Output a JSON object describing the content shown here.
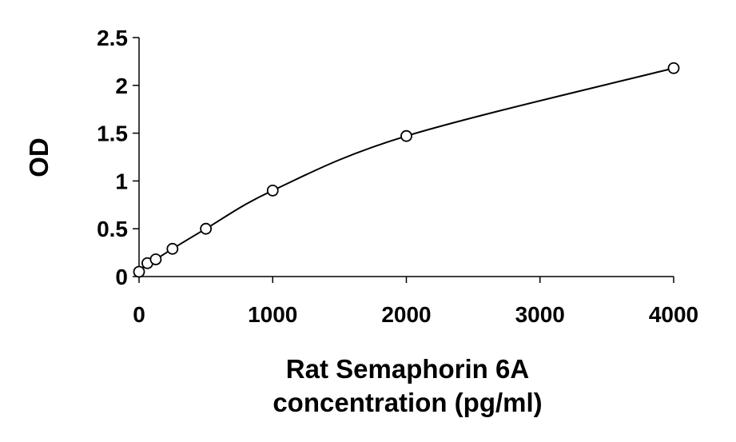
{
  "chart_data": {
    "type": "scatter",
    "title": "",
    "xlabel_lines": [
      "Rat Semaphorin 6A",
      "concentration (pg/ml)"
    ],
    "ylabel": "OD",
    "xlim": [
      0,
      4000
    ],
    "ylim": [
      0,
      2.5
    ],
    "x_ticks": [
      0,
      1000,
      2000,
      3000,
      4000
    ],
    "x_tick_labels": [
      "0",
      "1000",
      "2000",
      "3000",
      "4000"
    ],
    "y_ticks": [
      0,
      0.5,
      1,
      1.5,
      2,
      2.5
    ],
    "y_tick_labels": [
      "0",
      "0.5",
      "1",
      "1.5",
      "2",
      "2.5"
    ],
    "grid": false,
    "legend": "none",
    "series": [
      {
        "marker": "open-circle",
        "line": "smooth-fit",
        "points": [
          {
            "x": 0,
            "y": 0.05
          },
          {
            "x": 62.5,
            "y": 0.14
          },
          {
            "x": 125,
            "y": 0.18
          },
          {
            "x": 250,
            "y": 0.29
          },
          {
            "x": 500,
            "y": 0.5
          },
          {
            "x": 1000,
            "y": 0.9
          },
          {
            "x": 2000,
            "y": 1.47
          },
          {
            "x": 4000,
            "y": 2.18
          }
        ]
      }
    ],
    "colors": {
      "line": "#000000",
      "marker_stroke": "#000000",
      "marker_fill": "#ffffff"
    }
  }
}
